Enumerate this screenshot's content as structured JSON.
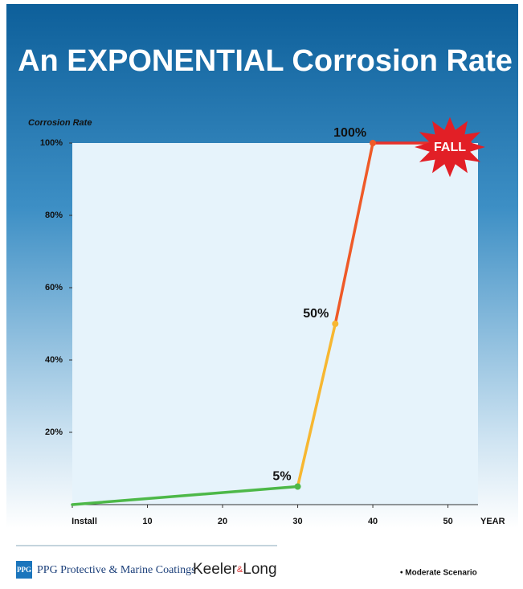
{
  "chart_data": {
    "type": "line",
    "title": "An EXPONENTIAL Corrosion Rate",
    "y_label": "Corrosion Rate",
    "x_label": "YEAR",
    "x": [
      0,
      30,
      35,
      40,
      53
    ],
    "series": [
      {
        "values": [
          0,
          5,
          50,
          100,
          100
        ],
        "value_labels": [
          null,
          "5%",
          "50%",
          "100%",
          null
        ],
        "segment_colors": [
          "#4db848",
          "#f7b731",
          "#ef5a28",
          "#e8312a"
        ]
      }
    ],
    "xlim": [
      0,
      54
    ],
    "xticks": [
      {
        "value": 0,
        "label": "Install"
      },
      10,
      20,
      30,
      40,
      50
    ],
    "ylim": [
      0,
      100
    ],
    "yticks": [
      {
        "value": 20,
        "label": "20%"
      },
      {
        "value": 40,
        "label": "40%"
      },
      {
        "value": 60,
        "label": "60%"
      },
      {
        "value": 80,
        "label": "80%"
      },
      {
        "value": 100,
        "label": "100%"
      }
    ],
    "annotation": "FALL",
    "footer": {
      "ppg_logo": "PPG",
      "ppg": "PPG Protective & Marine Coatings",
      "keeler": "Keeler",
      "amp": "&",
      "long": "Long",
      "note": "• Moderate Scenario"
    }
  }
}
